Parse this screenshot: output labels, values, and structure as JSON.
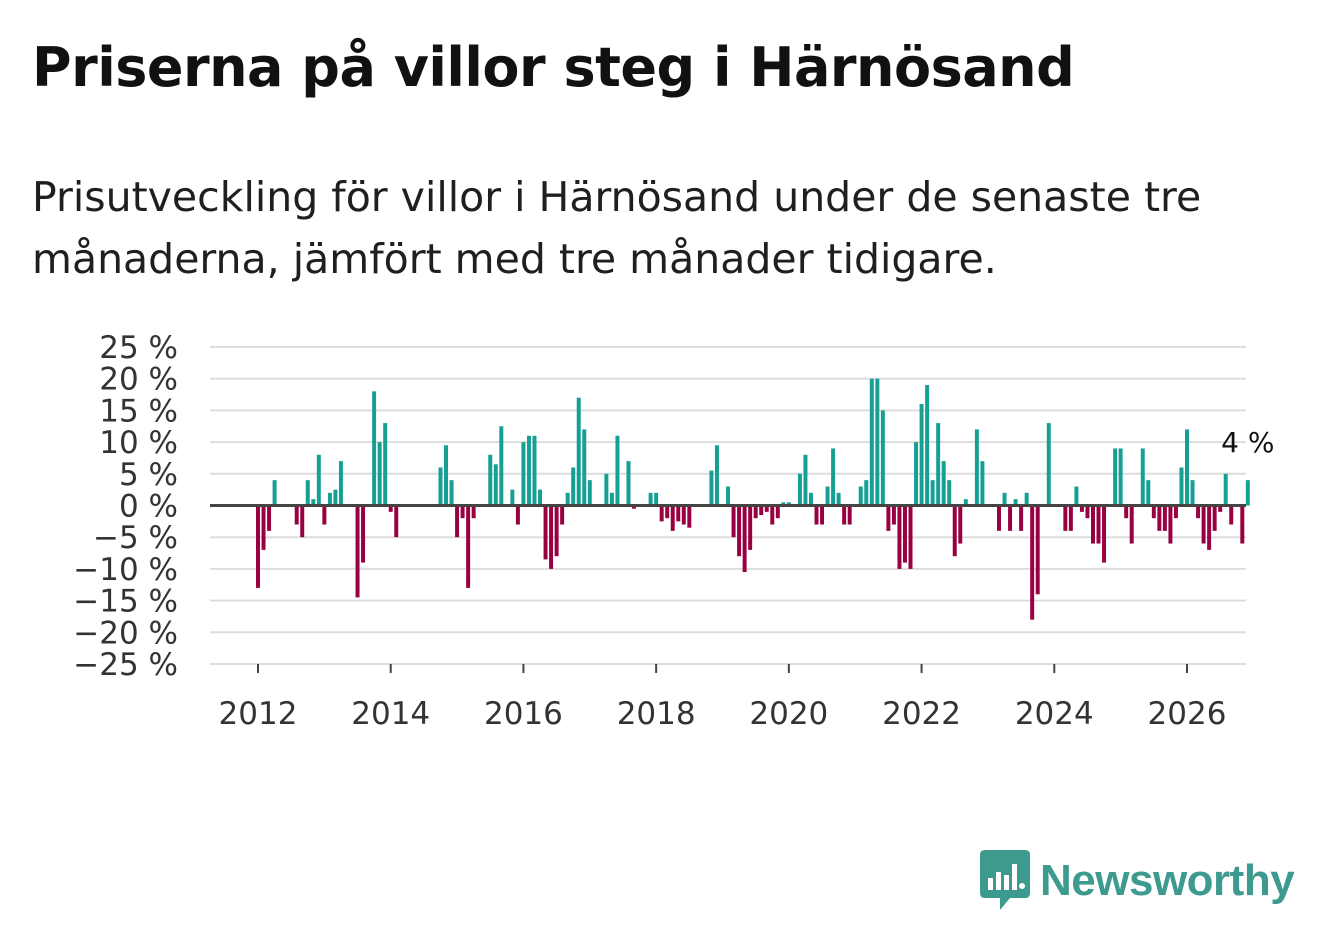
{
  "header": {
    "title": "Priserna på villor steg i Härnösand",
    "subtitle": "Prisutveckling för villor i Härnösand under de senaste tre månaderna, jämfört med tre månader tidigare."
  },
  "brand": {
    "name": "Newsworthy",
    "color": "#3d9a8e"
  },
  "colors": {
    "positive": "#16a094",
    "negative": "#990041",
    "zero_line": "#444444",
    "grid": "#dddddd"
  },
  "chart_data": {
    "type": "bar",
    "title": "Priserna på villor steg i Härnösand",
    "xlabel": "",
    "ylabel": "",
    "ylim": [
      -25,
      25
    ],
    "y_ticks": [
      {
        "value": 25,
        "label": "25 %"
      },
      {
        "value": 20,
        "label": "20 %"
      },
      {
        "value": 15,
        "label": "15 %"
      },
      {
        "value": 10,
        "label": "10 %"
      },
      {
        "value": 5,
        "label": "5 %"
      },
      {
        "value": 0,
        "label": "0 %"
      },
      {
        "value": -5,
        "label": "−5 %"
      },
      {
        "value": -10,
        "label": "−10 %"
      },
      {
        "value": -15,
        "label": "−15 %"
      },
      {
        "value": -20,
        "label": "−20 %"
      },
      {
        "value": -25,
        "label": "−25 %"
      }
    ],
    "x_ticks": [
      {
        "year": 2012,
        "label": "2012"
      },
      {
        "year": 2014,
        "label": "2014"
      },
      {
        "year": 2016,
        "label": "2016"
      },
      {
        "year": 2018,
        "label": "2018"
      },
      {
        "year": 2020,
        "label": "2020"
      },
      {
        "year": 2022,
        "label": "2022"
      },
      {
        "year": 2024,
        "label": "2024"
      },
      {
        "year": 2026,
        "label": "2026"
      }
    ],
    "start": {
      "year": 2011,
      "month": 4
    },
    "values": [
      0,
      0,
      0,
      0,
      0,
      0,
      0,
      0,
      0,
      -13,
      -7,
      -4,
      4,
      0,
      0,
      0,
      -3,
      -5,
      4,
      1,
      8,
      -3,
      2,
      2.5,
      7,
      0,
      0,
      -14.5,
      -9,
      0,
      18,
      10,
      13,
      -1,
      -5,
      0,
      0,
      0,
      0,
      0,
      0,
      0,
      6,
      9.5,
      4,
      -5,
      -2,
      -13,
      -2,
      0,
      0,
      8,
      6.5,
      12.5,
      0,
      2.5,
      -3,
      10,
      11,
      11,
      2.5,
      -8.5,
      -10,
      -8,
      -3,
      2,
      6,
      17,
      12,
      4,
      0,
      0,
      5,
      2,
      11,
      0,
      7,
      -0.5,
      0,
      0,
      2,
      2,
      -2.5,
      -2,
      -4,
      -2.5,
      -3,
      -3.5,
      0,
      0,
      0,
      5.5,
      9.5,
      0,
      3,
      -5,
      -8,
      -10.5,
      -7,
      -2,
      -1.5,
      -1,
      -3,
      -2,
      0.5,
      0.5,
      0,
      5,
      8,
      2,
      -3,
      -3,
      3,
      9,
      2,
      -3,
      -3,
      0,
      3,
      4,
      20,
      20,
      15,
      -4,
      -3,
      -10,
      -9,
      -10,
      10,
      16,
      19,
      4,
      13,
      7,
      4,
      -8,
      -6,
      1,
      0,
      12,
      7,
      0,
      0,
      -4,
      2,
      -4,
      1,
      -4,
      2,
      -18,
      -14,
      0,
      13,
      0,
      0,
      -4,
      -4,
      3,
      -1,
      -2,
      -6,
      -6,
      -9,
      0,
      9,
      9,
      -2,
      -6,
      0,
      9,
      4,
      -2,
      -4,
      -4,
      -6,
      -2,
      6,
      12,
      4,
      -2,
      -6,
      -7,
      -4,
      -1,
      5,
      -3,
      0,
      -6,
      4
    ],
    "last_value_label": "4 %"
  }
}
